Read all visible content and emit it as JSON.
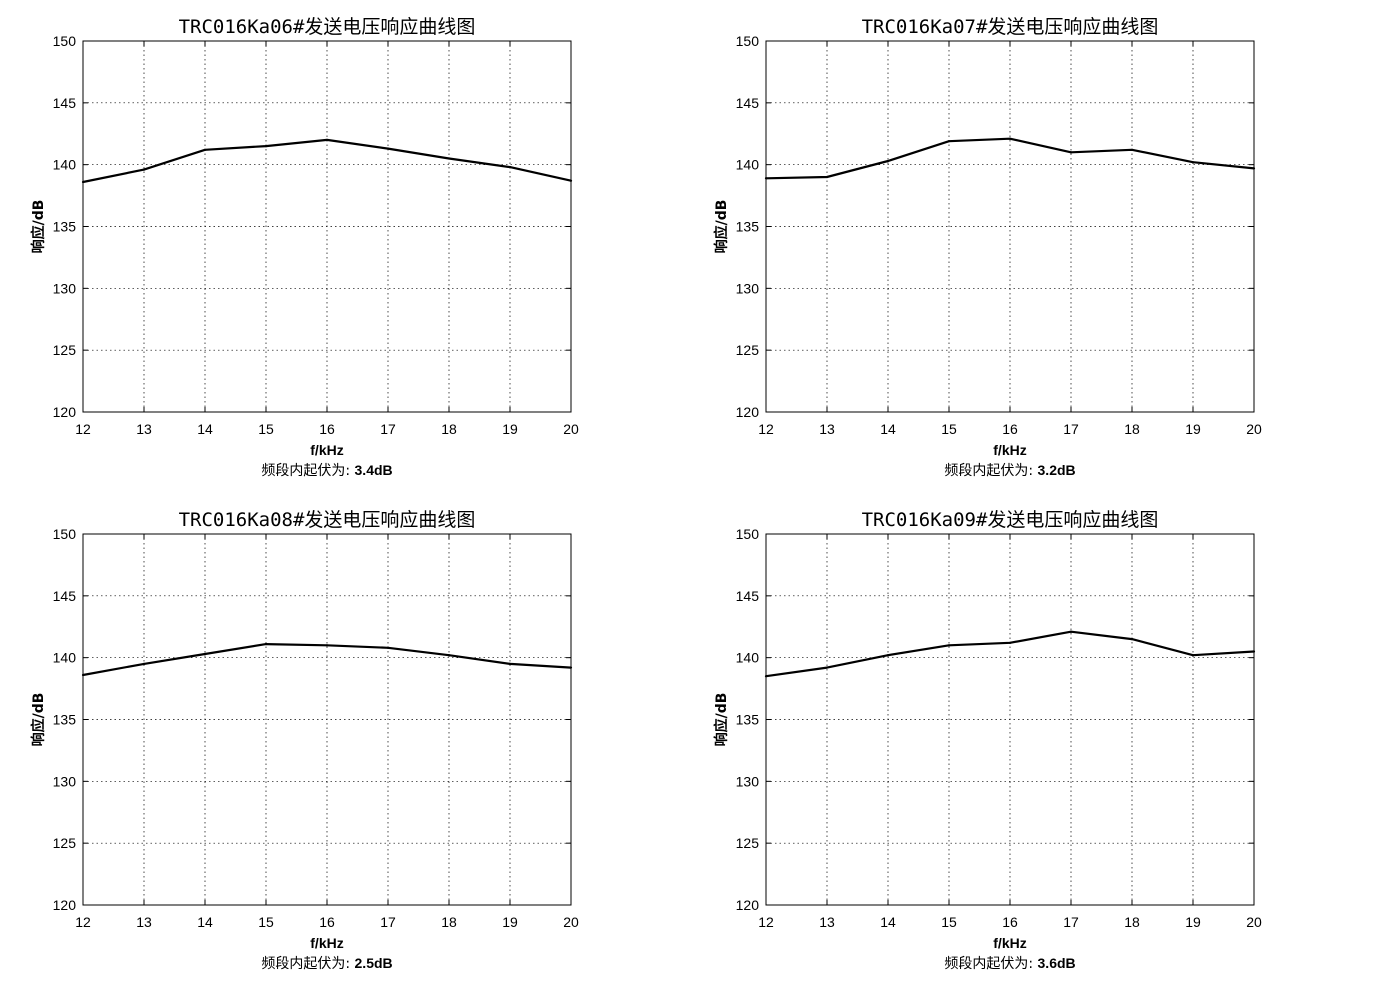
{
  "chart_data": [
    {
      "type": "line",
      "title": "TRC016Ka06#发送电压响应曲线图",
      "xlabel": "f/kHz",
      "ylabel": "响应/dB",
      "x": [
        12,
        13,
        14,
        15,
        16,
        17,
        18,
        19,
        20
      ],
      "xticks": [
        "12",
        "13",
        "14",
        "15",
        "16",
        "17",
        "18",
        "19",
        "20"
      ],
      "yticks": [
        "120",
        "125",
        "130",
        "135",
        "140",
        "145",
        "150"
      ],
      "xlim": [
        12,
        20
      ],
      "ylim": [
        120,
        150
      ],
      "grid": true,
      "series": [
        {
          "values": [
            138.6,
            139.6,
            141.2,
            141.5,
            142.0,
            141.3,
            140.5,
            139.8,
            138.7
          ]
        }
      ],
      "note_label": "频段内起伏为:",
      "note_value": "3.4dB"
    },
    {
      "type": "line",
      "title": "TRC016Ka07#发送电压响应曲线图",
      "xlabel": "f/kHz",
      "ylabel": "响应/dB",
      "x": [
        12,
        13,
        14,
        15,
        16,
        17,
        18,
        19,
        20
      ],
      "xticks": [
        "12",
        "13",
        "14",
        "15",
        "16",
        "17",
        "18",
        "19",
        "20"
      ],
      "yticks": [
        "120",
        "125",
        "130",
        "135",
        "140",
        "145",
        "150"
      ],
      "xlim": [
        12,
        20
      ],
      "ylim": [
        120,
        150
      ],
      "grid": true,
      "series": [
        {
          "values": [
            138.9,
            139.0,
            140.3,
            141.9,
            142.1,
            141.0,
            141.2,
            140.2,
            139.7
          ]
        }
      ],
      "note_label": "频段内起伏为:",
      "note_value": "3.2dB"
    },
    {
      "type": "line",
      "title": "TRC016Ka08#发送电压响应曲线图",
      "xlabel": "f/kHz",
      "ylabel": "响应/dB",
      "x": [
        12,
        13,
        14,
        15,
        16,
        17,
        18,
        19,
        20
      ],
      "xticks": [
        "12",
        "13",
        "14",
        "15",
        "16",
        "17",
        "18",
        "19",
        "20"
      ],
      "yticks": [
        "120",
        "125",
        "130",
        "135",
        "140",
        "145",
        "150"
      ],
      "xlim": [
        12,
        20
      ],
      "ylim": [
        120,
        150
      ],
      "grid": true,
      "series": [
        {
          "values": [
            138.6,
            139.5,
            140.3,
            141.1,
            141.0,
            140.8,
            140.2,
            139.5,
            139.2
          ]
        }
      ],
      "note_label": "频段内起伏为:",
      "note_value": "2.5dB"
    },
    {
      "type": "line",
      "title": "TRC016Ka09#发送电压响应曲线图",
      "xlabel": "f/kHz",
      "ylabel": "响应/dB",
      "x": [
        12,
        13,
        14,
        15,
        16,
        17,
        18,
        19,
        20
      ],
      "xticks": [
        "12",
        "13",
        "14",
        "15",
        "16",
        "17",
        "18",
        "19",
        "20"
      ],
      "yticks": [
        "120",
        "125",
        "130",
        "135",
        "140",
        "145",
        "150"
      ],
      "xlim": [
        12,
        20
      ],
      "ylim": [
        120,
        150
      ],
      "grid": true,
      "series": [
        {
          "values": [
            138.5,
            139.2,
            140.2,
            141.0,
            141.2,
            142.1,
            141.5,
            140.2,
            140.5
          ]
        }
      ],
      "note_label": "频段内起伏为:",
      "note_value": "3.6dB"
    }
  ]
}
